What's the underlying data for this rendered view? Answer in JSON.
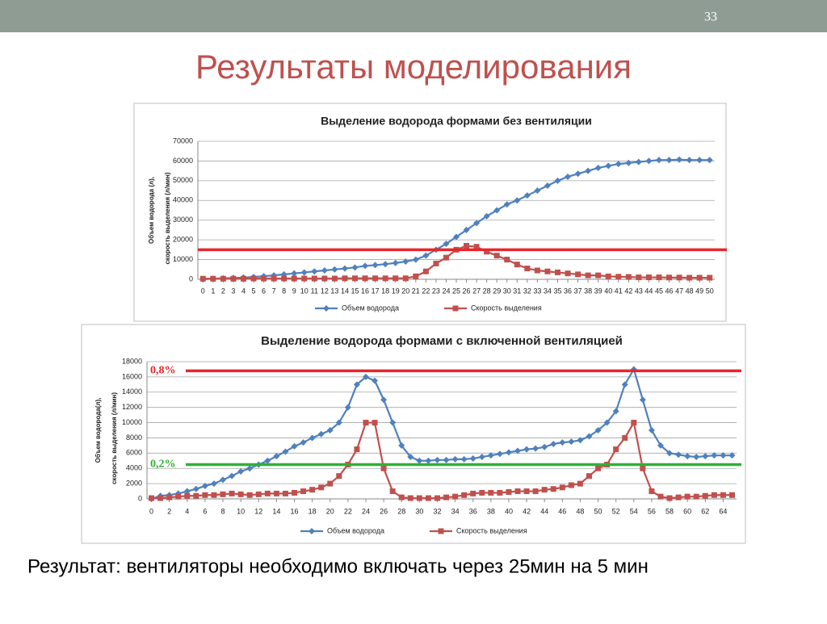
{
  "slide_number": "33",
  "title": "Результаты моделирования",
  "conclusion": "Результат: вентиляторы необходимо включать через 25мин на 5 мин",
  "chart_data": [
    {
      "type": "line",
      "title": "Выделение водорода формами без вентиляции",
      "ylabel": [
        "Объем водорода (л),",
        "скорость выделения (л/мин)"
      ],
      "x": [
        0,
        1,
        2,
        3,
        4,
        5,
        6,
        7,
        8,
        9,
        10,
        11,
        12,
        13,
        14,
        15,
        16,
        17,
        18,
        19,
        20,
        21,
        22,
        23,
        24,
        25,
        26,
        27,
        28,
        29,
        30,
        31,
        32,
        33,
        34,
        35,
        36,
        37,
        38,
        39,
        40,
        41,
        42,
        43,
        44,
        45,
        46,
        47,
        48,
        49,
        50
      ],
      "xlim": [
        -0.5,
        50.5
      ],
      "xticks": [
        0,
        1,
        2,
        3,
        4,
        5,
        6,
        7,
        8,
        9,
        10,
        11,
        12,
        13,
        14,
        15,
        16,
        17,
        18,
        19,
        20,
        21,
        22,
        23,
        24,
        25,
        26,
        27,
        28,
        29,
        30,
        31,
        32,
        33,
        34,
        35,
        36,
        37,
        38,
        39,
        40,
        41,
        42,
        43,
        44,
        45,
        46,
        47,
        48,
        49,
        50
      ],
      "ylim": [
        0,
        70000
      ],
      "yticks": [
        0,
        10000,
        20000,
        30000,
        40000,
        50000,
        60000,
        70000
      ],
      "grid": true,
      "legend": "bottom",
      "series": [
        {
          "name": "Объем водорода",
          "color": "#4f81bd",
          "marker": "diamond",
          "values": [
            0,
            300,
            500,
            700,
            900,
            1200,
            1600,
            2000,
            2500,
            3000,
            3500,
            4000,
            4500,
            5000,
            5500,
            6000,
            6800,
            7200,
            7700,
            8300,
            9000,
            10000,
            12000,
            15000,
            18000,
            21500,
            25000,
            28500,
            32000,
            35000,
            38000,
            40000,
            42500,
            45000,
            47500,
            50000,
            52000,
            53500,
            55000,
            56500,
            57500,
            58500,
            59000,
            59500,
            60000,
            60500,
            60500,
            60700,
            60500,
            60500,
            60500
          ]
        },
        {
          "name": "Скорость выделения",
          "color": "#c0504d",
          "marker": "square",
          "values": [
            300,
            300,
            300,
            300,
            300,
            400,
            400,
            400,
            400,
            400,
            400,
            400,
            400,
            400,
            500,
            500,
            500,
            500,
            500,
            500,
            500,
            1500,
            4000,
            8000,
            11000,
            15000,
            17000,
            16500,
            14000,
            12000,
            10000,
            7500,
            5500,
            4500,
            4000,
            3500,
            3000,
            2500,
            2000,
            2000,
            1500,
            1300,
            1200,
            1000,
            1000,
            1000,
            900,
            900,
            800,
            800,
            800
          ]
        }
      ],
      "reference_lines": [
        {
          "value": 15000,
          "color": "#e8262b"
        }
      ]
    },
    {
      "type": "line",
      "title": "Выделение водорода формами с включенной вентиляцией",
      "ylabel": [
        "Объем водорода(л),",
        "скорость выделения (л/мин)"
      ],
      "x": [
        0,
        1,
        2,
        3,
        4,
        5,
        6,
        7,
        8,
        9,
        10,
        11,
        12,
        13,
        14,
        15,
        16,
        17,
        18,
        19,
        20,
        21,
        22,
        23,
        24,
        25,
        26,
        27,
        28,
        29,
        30,
        31,
        32,
        33,
        34,
        35,
        36,
        37,
        38,
        39,
        40,
        41,
        42,
        43,
        44,
        45,
        46,
        47,
        48,
        49,
        50,
        51,
        52,
        53,
        54,
        55,
        56,
        57,
        58,
        59,
        60,
        61,
        62,
        63,
        64,
        65
      ],
      "xlim": [
        -0.5,
        65.5
      ],
      "xticks": [
        0,
        2,
        4,
        6,
        8,
        10,
        12,
        14,
        16,
        18,
        20,
        22,
        24,
        26,
        28,
        30,
        32,
        34,
        36,
        38,
        40,
        42,
        44,
        46,
        48,
        50,
        52,
        54,
        56,
        58,
        60,
        62,
        64
      ],
      "ylim": [
        0,
        18000
      ],
      "yticks": [
        0,
        2000,
        4000,
        6000,
        8000,
        10000,
        12000,
        14000,
        16000,
        18000
      ],
      "grid": true,
      "legend": "bottom",
      "series": [
        {
          "name": "Объем водорода",
          "color": "#4f81bd",
          "marker": "diamond",
          "values": [
            0,
            400,
            500,
            700,
            1000,
            1300,
            1700,
            2000,
            2500,
            3000,
            3600,
            4000,
            4500,
            5000,
            5600,
            6200,
            6900,
            7400,
            8000,
            8500,
            9000,
            10000,
            12000,
            15000,
            16000,
            15500,
            13000,
            10000,
            7000,
            5500,
            5000,
            5000,
            5100,
            5100,
            5200,
            5200,
            5300,
            5500,
            5700,
            5900,
            6100,
            6300,
            6500,
            6600,
            6800,
            7200,
            7400,
            7500,
            7700,
            8200,
            9000,
            10000,
            11500,
            15000,
            17000,
            13000,
            9000,
            7000,
            6000,
            5800,
            5600,
            5500,
            5600,
            5700,
            5700,
            5700
          ]
        },
        {
          "name": "Скорость выделения",
          "color": "#c0504d",
          "marker": "square",
          "values": [
            100,
            100,
            200,
            300,
            400,
            400,
            500,
            500,
            600,
            700,
            600,
            500,
            600,
            700,
            700,
            700,
            800,
            1000,
            1200,
            1500,
            2000,
            3000,
            4500,
            6500,
            10000,
            10000,
            4000,
            1000,
            200,
            100,
            100,
            100,
            100,
            200,
            300,
            500,
            700,
            800,
            800,
            800,
            900,
            1000,
            1000,
            1000,
            1200,
            1300,
            1500,
            1800,
            2000,
            3000,
            4000,
            4500,
            6500,
            8000,
            10000,
            4000,
            1000,
            300,
            100,
            200,
            300,
            300,
            400,
            500,
            500,
            500
          ]
        }
      ],
      "reference_lines": [
        {
          "value": 16800,
          "color": "#e8262b",
          "label": "0,8%"
        },
        {
          "value": 4500,
          "color": "#2eb135",
          "label": "0,2%"
        }
      ]
    }
  ]
}
